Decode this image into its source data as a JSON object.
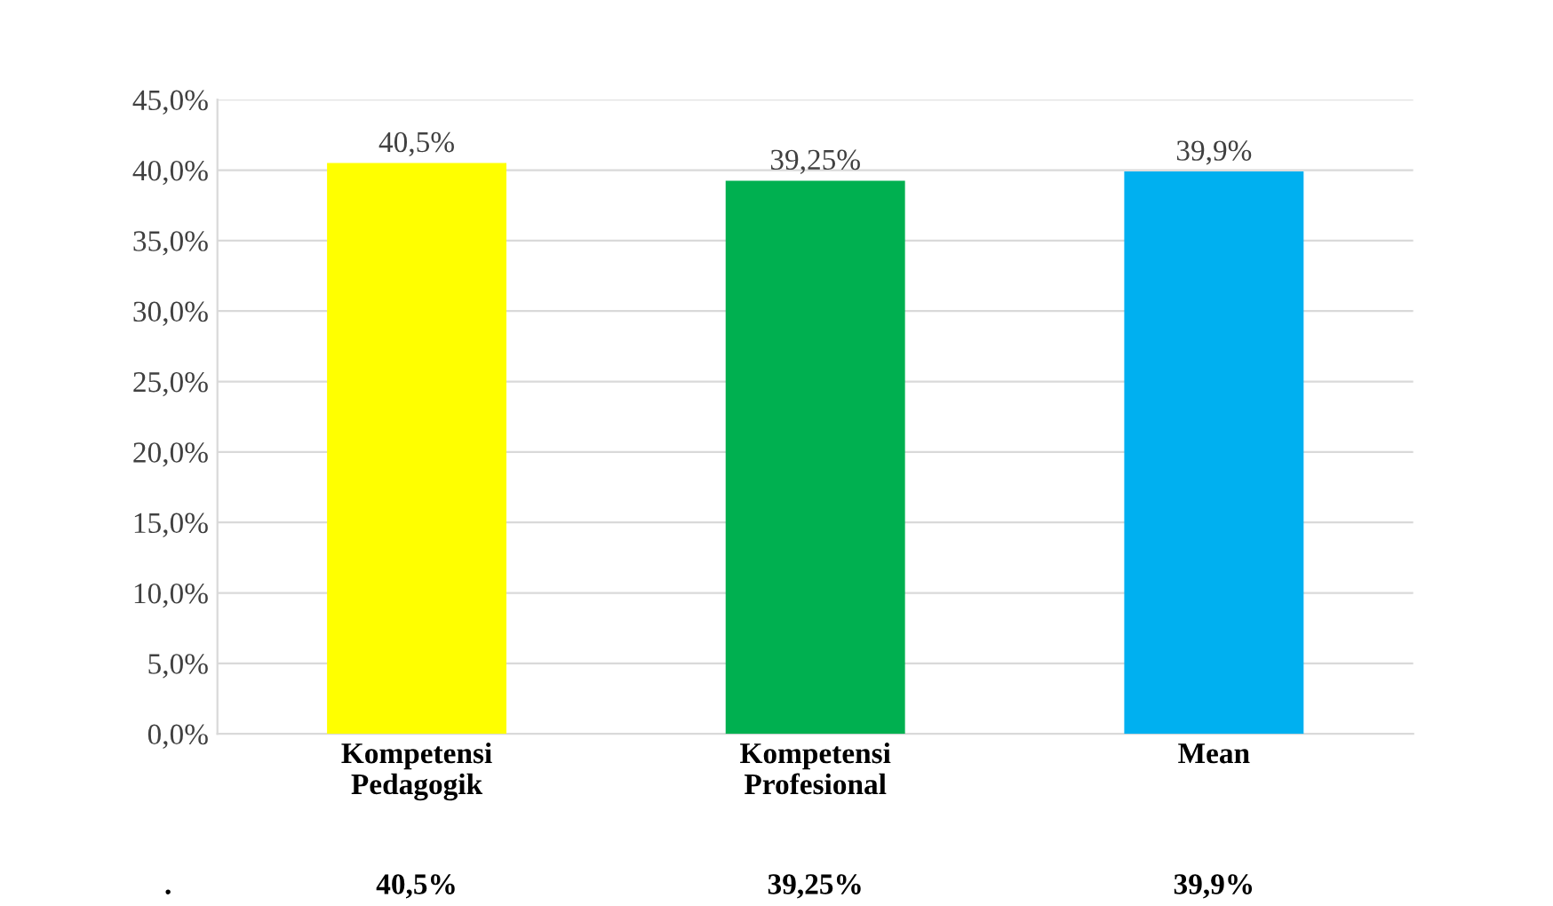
{
  "chart_data": {
    "type": "bar",
    "categories": [
      "Kompetensi Pedagogik",
      "Kompetensi Profesional",
      "Mean"
    ],
    "values": [
      40.5,
      39.25,
      39.9
    ],
    "colors": [
      "#ffff00",
      "#00b050",
      "#00b0f0"
    ],
    "value_labels": [
      "40,5%",
      "39,25%",
      "39,9%"
    ],
    "ylim": [
      0,
      45
    ],
    "yticks": [
      {
        "value": 0,
        "label": "0,0%"
      },
      {
        "value": 5,
        "label": "5,0%"
      },
      {
        "value": 10,
        "label": "10,0%"
      },
      {
        "value": 15,
        "label": "15,0%"
      },
      {
        "value": 20,
        "label": "20,0%"
      },
      {
        "value": 25,
        "label": "25,0%"
      },
      {
        "value": 30,
        "label": "30,0%"
      },
      {
        "value": 35,
        "label": "35,0%"
      },
      {
        "value": 40,
        "label": "40,0%"
      },
      {
        "value": 45,
        "label": "45,0%"
      }
    ],
    "annotations": [
      "."
    ],
    "grid": "y"
  }
}
